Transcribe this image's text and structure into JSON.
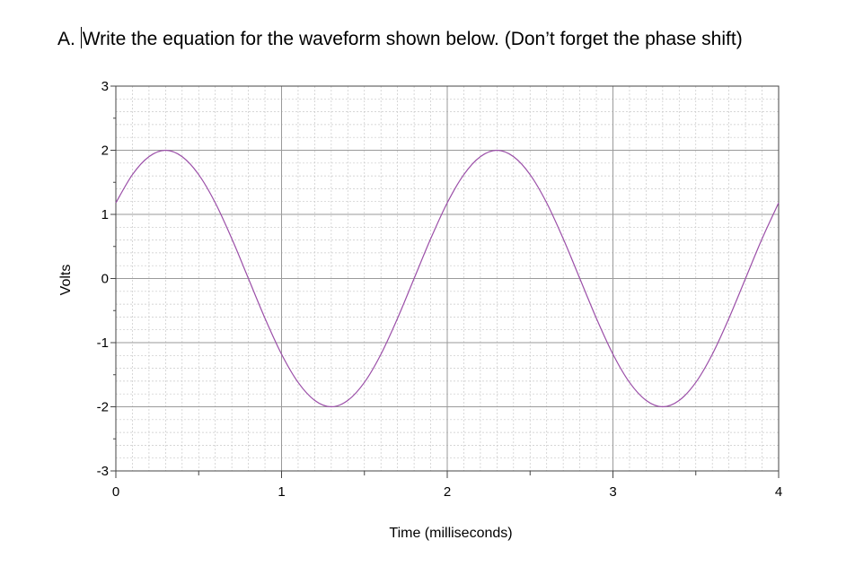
{
  "question": {
    "prefix": "A.",
    "text": "Write the equation for the waveform shown below. (Don’t forget the phase shift)"
  },
  "chart_data": {
    "type": "line",
    "title": "",
    "xlabel": "Time (milliseconds)",
    "ylabel": "Volts",
    "xlim": [
      0,
      4
    ],
    "ylim": [
      -3,
      3
    ],
    "x_ticks": [
      0,
      1,
      2,
      3,
      4
    ],
    "y_ticks": [
      3,
      2,
      1,
      0,
      -1,
      -2,
      -3
    ],
    "grid": true,
    "legend": "none",
    "line_color": "#9b4fa8",
    "series": [
      {
        "x": [
          0,
          0.1,
          0.2,
          0.3,
          0.4,
          0.5,
          0.6,
          0.7,
          0.8,
          0.9,
          1.0,
          1.1,
          1.2,
          1.3,
          1.4,
          1.5,
          1.6,
          1.7,
          1.8,
          1.9,
          2.0,
          2.1,
          2.2,
          2.3,
          2.4,
          2.5,
          2.6,
          2.7,
          2.8,
          2.9,
          3.0,
          3.1,
          3.2,
          3.3,
          3.4,
          3.5,
          3.6,
          3.7,
          3.8,
          3.9,
          4.0
        ],
        "values": [
          1.18,
          1.62,
          1.9,
          2.0,
          1.9,
          1.62,
          1.18,
          0.62,
          0.0,
          -0.62,
          -1.18,
          -1.62,
          -1.9,
          -2.0,
          -1.9,
          -1.62,
          -1.18,
          -0.62,
          0.0,
          0.62,
          1.18,
          1.62,
          1.9,
          2.0,
          1.9,
          1.62,
          1.18,
          0.62,
          0.0,
          -0.62,
          -1.18,
          -1.62,
          -1.9,
          -2.0,
          -1.9,
          -1.62,
          -1.18,
          -0.62,
          0.0,
          0.62,
          1.18
        ]
      }
    ]
  }
}
